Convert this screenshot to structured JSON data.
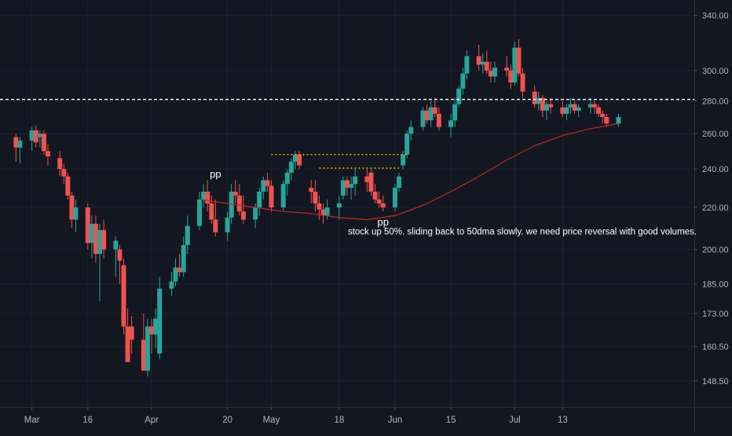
{
  "theme": {
    "background": "#131722",
    "grid": "#1e2230",
    "axis_text": "#b2b5be",
    "up": "#26a69a",
    "down": "#ef5350",
    "ma_line": "#c62828",
    "level_line": "#ffffff",
    "dotted_lines": "#f5b400",
    "annotation_text": "#ffffff"
  },
  "chart_data": {
    "type": "candlestick",
    "title": "",
    "y_axis": {
      "scale": "log",
      "ticks": [
        340.0,
        300.0,
        280.0,
        260.0,
        240.0,
        220.0,
        200.0,
        185.0,
        173.0,
        160.5,
        148.5
      ],
      "tick_labels": [
        "340.00",
        "300.00",
        "280.00",
        "260.00",
        "240.00",
        "220.00",
        "200.00",
        "185.00",
        "173.00",
        "160.50",
        "148.50"
      ],
      "range": [
        140,
        352
      ]
    },
    "x_axis": {
      "tick_labels": [
        {
          "label": "Mar",
          "date": "2020-03-02"
        },
        {
          "label": "16",
          "date": "2020-03-16"
        },
        {
          "label": "Apr",
          "date": "2020-04-01"
        },
        {
          "label": "20",
          "date": "2020-04-20"
        },
        {
          "label": "May",
          "date": "2020-05-01"
        },
        {
          "label": "18",
          "date": "2020-05-18"
        },
        {
          "label": "Jun",
          "date": "2020-06-01"
        },
        {
          "label": "15",
          "date": "2020-06-15"
        },
        {
          "label": "Jul",
          "date": "2020-07-01"
        },
        {
          "label": "13",
          "date": "2020-07-13"
        }
      ]
    },
    "candles": [
      [
        "2020-02-27",
        258,
        260,
        244,
        252
      ],
      [
        "2020-02-28",
        252,
        258,
        243,
        256
      ],
      [
        "2020-03-02",
        256,
        264,
        250,
        262
      ],
      [
        "2020-03-03",
        262,
        265,
        252,
        255
      ],
      [
        "2020-03-04",
        258,
        262,
        252,
        260
      ],
      [
        "2020-03-05",
        260,
        262,
        248,
        250
      ],
      [
        "2020-03-06",
        250,
        254,
        242,
        247
      ],
      [
        "2020-03-09",
        246,
        250,
        236,
        240
      ],
      [
        "2020-03-10",
        240,
        243,
        232,
        236
      ],
      [
        "2020-03-11",
        236,
        238,
        224,
        226
      ],
      [
        "2020-03-12",
        226,
        228,
        210,
        214
      ],
      [
        "2020-03-13",
        214,
        224,
        208,
        220
      ],
      [
        "2020-03-16",
        220,
        222,
        200,
        203
      ],
      [
        "2020-03-17",
        203,
        216,
        196,
        212
      ],
      [
        "2020-03-18",
        212,
        216,
        194,
        198
      ],
      [
        "2020-03-19",
        198,
        212,
        178,
        209
      ],
      [
        "2020-03-20",
        209,
        214,
        196,
        200
      ],
      [
        "2020-03-23",
        200,
        206,
        188,
        204
      ],
      [
        "2020-03-24",
        200,
        202,
        185,
        195
      ],
      [
        "2020-03-25",
        193,
        196,
        165,
        168
      ],
      [
        "2020-03-26",
        168,
        175,
        155,
        155
      ],
      [
        "2020-03-27",
        168,
        172,
        158,
        163
      ],
      [
        "2020-03-30",
        163,
        173,
        152,
        152
      ],
      [
        "2020-03-31",
        152,
        171,
        150,
        168
      ],
      [
        "2020-04-01",
        168,
        171,
        158,
        165
      ],
      [
        "2020-04-02",
        165,
        175,
        160,
        171
      ],
      [
        "2020-04-03",
        158,
        188,
        156,
        183
      ],
      [
        "2020-04-06",
        183,
        190,
        180,
        186
      ],
      [
        "2020-04-07",
        186,
        196,
        184,
        192
      ],
      [
        "2020-04-08",
        192,
        198,
        188,
        190
      ],
      [
        "2020-04-09",
        190,
        206,
        188,
        202
      ],
      [
        "2020-04-10",
        202,
        216,
        198,
        211
      ],
      [
        "2020-04-13",
        211,
        228,
        209,
        224
      ],
      [
        "2020-04-14",
        224,
        232,
        220,
        228
      ],
      [
        "2020-04-15",
        228,
        234,
        218,
        222
      ],
      [
        "2020-04-16",
        222,
        226,
        212,
        214
      ],
      [
        "2020-04-17",
        214,
        224,
        206,
        208
      ],
      [
        "2020-04-20",
        208,
        218,
        204,
        215
      ],
      [
        "2020-04-21",
        215,
        232,
        212,
        228
      ],
      [
        "2020-04-22",
        228,
        234,
        222,
        226
      ],
      [
        "2020-04-23",
        226,
        232,
        216,
        218
      ],
      [
        "2020-04-24",
        218,
        226,
        212,
        214
      ],
      [
        "2020-04-27",
        214,
        222,
        210,
        220
      ],
      [
        "2020-04-28",
        220,
        230,
        216,
        228
      ],
      [
        "2020-04-29",
        228,
        236,
        224,
        234
      ],
      [
        "2020-04-30",
        234,
        238,
        228,
        231
      ],
      [
        "2020-05-01",
        231,
        234,
        218,
        220
      ],
      [
        "2020-05-04",
        220,
        234,
        218,
        232
      ],
      [
        "2020-05-05",
        232,
        240,
        226,
        238
      ],
      [
        "2020-05-06",
        238,
        246,
        234,
        244
      ],
      [
        "2020-05-07",
        244,
        250,
        240,
        248
      ],
      [
        "2020-05-08",
        248,
        250,
        240,
        242
      ],
      [
        "2020-05-11",
        230,
        234,
        222,
        228
      ],
      [
        "2020-05-12",
        228,
        234,
        218,
        222
      ],
      [
        "2020-05-13",
        222,
        226,
        214,
        219
      ],
      [
        "2020-05-14",
        219,
        222,
        212,
        216
      ],
      [
        "2020-05-15",
        216,
        224,
        214,
        220
      ],
      [
        "2020-05-18",
        220,
        226,
        214,
        222
      ],
      [
        "2020-05-19",
        226,
        236,
        224,
        234
      ],
      [
        "2020-05-20",
        234,
        236,
        226,
        230
      ],
      [
        "2020-05-21",
        230,
        236,
        224,
        232
      ],
      [
        "2020-05-22",
        232,
        240,
        226,
        236
      ],
      [
        "2020-05-25",
        236,
        240,
        228,
        233
      ],
      [
        "2020-05-26",
        238,
        240,
        226,
        228
      ],
      [
        "2020-05-27",
        228,
        232,
        222,
        224
      ],
      [
        "2020-05-28",
        224,
        228,
        220,
        222
      ],
      [
        "2020-05-29",
        222,
        226,
        218,
        220
      ],
      [
        "2020-06-01",
        220,
        232,
        218,
        230
      ],
      [
        "2020-06-02",
        230,
        238,
        228,
        236
      ],
      [
        "2020-06-03",
        242,
        250,
        240,
        248
      ],
      [
        "2020-06-04",
        248,
        262,
        246,
        260
      ],
      [
        "2020-06-05",
        260,
        268,
        256,
        264
      ],
      [
        "2020-06-08",
        264,
        276,
        262,
        274
      ],
      [
        "2020-06-09",
        274,
        278,
        266,
        268
      ],
      [
        "2020-06-10",
        268,
        280,
        264,
        276
      ],
      [
        "2020-06-11",
        276,
        282,
        270,
        272
      ],
      [
        "2020-06-12",
        272,
        276,
        262,
        264
      ],
      [
        "2020-06-15",
        264,
        272,
        258,
        268
      ],
      [
        "2020-06-16",
        268,
        282,
        264,
        278
      ],
      [
        "2020-06-17",
        278,
        290,
        276,
        288
      ],
      [
        "2020-06-18",
        288,
        302,
        284,
        298
      ],
      [
        "2020-06-19",
        298,
        314,
        294,
        310
      ],
      [
        "2020-06-22",
        310,
        318,
        300,
        304
      ],
      [
        "2020-06-23",
        304,
        312,
        298,
        306
      ],
      [
        "2020-06-24",
        306,
        314,
        298,
        300
      ],
      [
        "2020-06-25",
        300,
        306,
        292,
        296
      ],
      [
        "2020-06-26",
        296,
        306,
        292,
        302
      ],
      [
        "2020-06-29",
        302,
        310,
        296,
        300
      ],
      [
        "2020-06-30",
        300,
        304,
        288,
        292
      ],
      [
        "2020-07-01",
        292,
        320,
        290,
        316
      ],
      [
        "2020-07-02",
        316,
        322,
        296,
        298
      ],
      [
        "2020-07-03",
        298,
        302,
        282,
        286
      ],
      [
        "2020-07-06",
        286,
        290,
        276,
        278
      ],
      [
        "2020-07-07",
        278,
        286,
        274,
        282
      ],
      [
        "2020-07-08",
        282,
        284,
        270,
        274
      ],
      [
        "2020-07-09",
        274,
        280,
        268,
        278
      ],
      [
        "2020-07-10",
        278,
        282,
        272,
        276
      ],
      [
        "2020-07-13",
        276,
        280,
        270,
        272
      ],
      [
        "2020-07-14",
        272,
        278,
        268,
        276
      ],
      [
        "2020-07-15",
        276,
        282,
        272,
        278
      ],
      [
        "2020-07-16",
        278,
        280,
        272,
        274
      ],
      [
        "2020-07-17",
        274,
        278,
        270,
        276
      ],
      [
        "2020-07-20",
        276,
        282,
        272,
        278
      ],
      [
        "2020-07-21",
        278,
        280,
        272,
        276
      ],
      [
        "2020-07-22",
        276,
        278,
        270,
        272
      ],
      [
        "2020-07-23",
        272,
        274,
        266,
        270
      ],
      [
        "2020-07-24",
        270,
        272,
        264,
        266
      ],
      [
        "2020-07-27",
        266,
        272,
        264,
        270
      ]
    ],
    "series": [
      {
        "type": "line",
        "points": [
          [
            "2020-04-13",
            224
          ],
          [
            "2020-04-20",
            222
          ],
          [
            "2020-04-27",
            220
          ],
          [
            "2020-05-04",
            218
          ],
          [
            "2020-05-11",
            217
          ],
          [
            "2020-05-18",
            215
          ],
          [
            "2020-05-25",
            214
          ],
          [
            "2020-06-01",
            216
          ],
          [
            "2020-06-08",
            221
          ],
          [
            "2020-06-15",
            228
          ],
          [
            "2020-06-22",
            236
          ],
          [
            "2020-06-29",
            245
          ],
          [
            "2020-07-06",
            253
          ],
          [
            "2020-07-13",
            259
          ],
          [
            "2020-07-20",
            263
          ],
          [
            "2020-07-27",
            266
          ]
        ]
      }
    ],
    "horizontal_lines": [
      {
        "value": 281,
        "style": "dashed",
        "color": "#ffffff"
      }
    ],
    "level_segments": [
      {
        "value": 248,
        "from": "2020-05-01",
        "to": "2020-06-04",
        "style": "dotted"
      },
      {
        "value": 240.5,
        "from": "2020-05-13",
        "to": "2020-06-02",
        "style": "dotted"
      }
    ],
    "annotations": [
      {
        "text": "pp",
        "date": "2020-04-17",
        "value": 232,
        "position": "above"
      },
      {
        "text": "pp",
        "date": "2020-05-29",
        "value": 218,
        "position": "below"
      },
      {
        "text": "stock up 50%. sliding back to 50dma slowly. we need price reversal with good volumes.",
        "date": "2020-06-01",
        "value": 207,
        "position": "right"
      }
    ]
  }
}
